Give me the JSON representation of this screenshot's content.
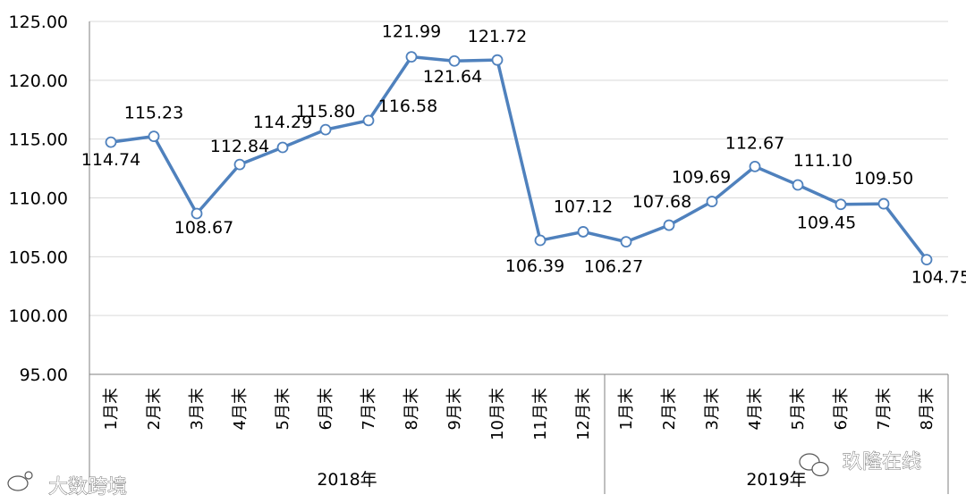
{
  "chart_data": {
    "type": "line",
    "title": "",
    "xlabel": "",
    "ylabel": "",
    "ylim": [
      95,
      125
    ],
    "yticks": [
      "95.00",
      "100.00",
      "105.00",
      "110.00",
      "115.00",
      "120.00",
      "125.00"
    ],
    "grid": true,
    "legend": "none",
    "categories": [
      "1月末",
      "2月末",
      "3月末",
      "4月末",
      "5月末",
      "6月末",
      "7月末",
      "8月末",
      "9月末",
      "10月末",
      "11月末",
      "12月末",
      "1月末",
      "2月末",
      "3月末",
      "4月末",
      "5月末",
      "6月末",
      "7月末",
      "8月末"
    ],
    "category_groups": [
      {
        "label": "2018年",
        "count": 12
      },
      {
        "label": "2019年",
        "count": 8
      }
    ],
    "series": [
      {
        "values": [
          114.74,
          115.23,
          108.67,
          112.84,
          114.29,
          115.8,
          116.58,
          121.99,
          121.64,
          121.72,
          106.39,
          107.12,
          106.27,
          107.68,
          109.69,
          112.67,
          111.1,
          109.45,
          109.5,
          104.75
        ],
        "data_labels": [
          "114.74",
          "115.23",
          "108.67",
          "112.84",
          "114.29",
          "115.80",
          "116.58",
          "121.99",
          "121.64",
          "121.72",
          "106.39",
          "107.12",
          "106.27",
          "107.68",
          "109.69",
          "112.67",
          "111.10",
          "109.45",
          "109.50",
          "104.75"
        ],
        "color": "#4f81bd"
      }
    ]
  },
  "watermarks": {
    "left": "大数跨境",
    "right": "玖隆在线"
  },
  "colors": {
    "line": "#4f81bd",
    "marker_fill": "#ffffff",
    "grid": "#d9d9d9",
    "axis": "#7f7f7f"
  }
}
